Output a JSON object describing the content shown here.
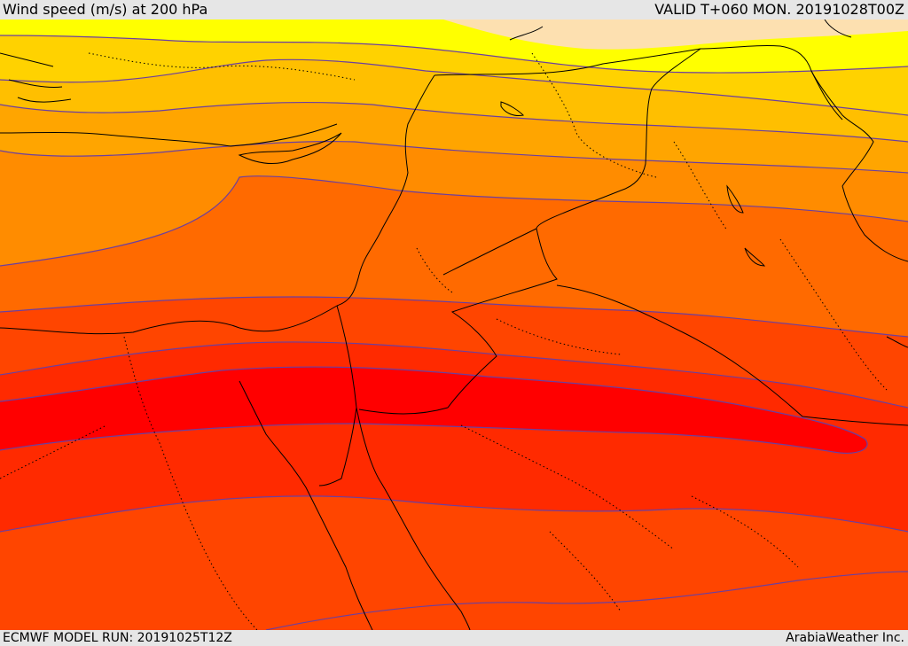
{
  "header": {
    "title": "Wind speed (m/s) at 200 hPa",
    "valid": "VALID T+060 MON. 20191028T00Z"
  },
  "footer": {
    "model_run": "ECMWF MODEL RUN: 20191025T12Z",
    "credit": "ArabiaWeather Inc."
  },
  "colors": {
    "band_lightest": "#fde0b0",
    "band_yellow": "#ffff00",
    "band_gold": "#ffd200",
    "band_amber": "#ffbf00",
    "band_orange_light": "#ffa500",
    "band_orange": "#ff8c00",
    "band_orange_deep": "#ff6a00",
    "band_red_orange": "#ff4500",
    "band_red_light": "#ff2a00",
    "band_red": "#ff0000",
    "contour": "#6b3fa0",
    "border": "#000000"
  }
}
